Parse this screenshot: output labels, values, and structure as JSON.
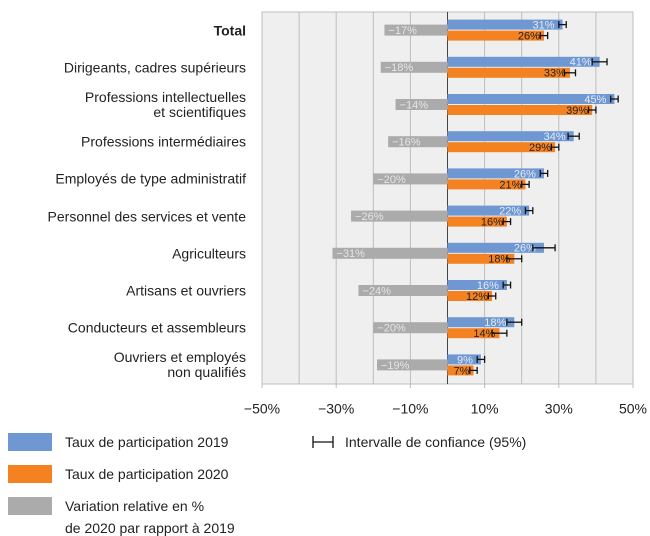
{
  "chart_data": {
    "type": "bar",
    "orientation": "horizontal",
    "categories": [
      "Total",
      "Dirigeants, cadres supérieurs",
      "Professions intellectuelles\net scientifiques",
      "Professions intermédiaires",
      "Employés de type administratif",
      "Personnel des services et vente",
      "Agriculteurs",
      "Artisans et ouvriers",
      "Conducteurs et assembleurs",
      "Ouvriers et employés\nnon qualifiés"
    ],
    "series": [
      {
        "name": "Taux de participation 2019",
        "color": "#6f97d1",
        "values": [
          31,
          41,
          45,
          34,
          26,
          22,
          26,
          16,
          18,
          9
        ],
        "value_labels": [
          "31%",
          "41%",
          "45%",
          "34%",
          "26%",
          "22%",
          "26%",
          "16%",
          "18%",
          "9%"
        ],
        "errors": [
          1,
          2,
          1,
          1.5,
          1,
          1,
          3,
          1,
          2,
          1
        ]
      },
      {
        "name": "Taux de participation 2020",
        "color": "#f58220",
        "values": [
          26,
          33,
          39,
          29,
          21,
          16,
          18,
          12,
          14,
          7
        ],
        "value_labels": [
          "26%",
          "33%",
          "39%",
          "29%",
          "21%",
          "16%",
          "18%",
          "12%",
          "14%",
          "7%"
        ],
        "errors": [
          1,
          1.5,
          1,
          1,
          1,
          1,
          2,
          1,
          2,
          1
        ]
      },
      {
        "name": "Variation relative en %\nde 2020 par rapport à 2019",
        "color": "#ababab",
        "values": [
          -17,
          -18,
          -14,
          -16,
          -20,
          -26,
          -31,
          -24,
          -20,
          -19
        ],
        "value_labels": [
          "−17%",
          "−18%",
          "−14%",
          "−16%",
          "−20%",
          "−26%",
          "−31%",
          "−24%",
          "−20%",
          "−19%"
        ]
      }
    ],
    "error_label": "Intervalle de confiance (95%)",
    "xlim": [
      -50,
      50
    ],
    "xticks": [
      {
        "value": -50,
        "label": "−50%"
      },
      {
        "value": -30,
        "label": "−30%"
      },
      {
        "value": -10,
        "label": "−10%"
      },
      {
        "value": 10,
        "label": "10%"
      },
      {
        "value": 30,
        "label": "30%"
      },
      {
        "value": 50,
        "label": "50%"
      }
    ],
    "xgrid": [
      -40,
      -30,
      -20,
      -10,
      0,
      10,
      20,
      30,
      40
    ],
    "grid": true
  }
}
